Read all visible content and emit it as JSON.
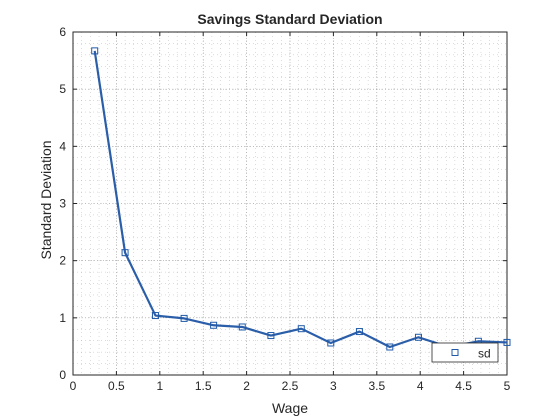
{
  "colors": {
    "background": "#ffffff",
    "axes": "#262626",
    "grid": "#8c8c8c",
    "line": "#2b5ea9",
    "marker_edge": "#1f5aa8"
  },
  "chart_data": {
    "type": "line",
    "title": "Savings Standard Deviation",
    "xlabel": "Wage",
    "ylabel": "Standard Deviation",
    "xlim": [
      0,
      5
    ],
    "ylim": [
      0,
      6
    ],
    "xticks": [
      0,
      0.5,
      1,
      1.5,
      2,
      2.5,
      3,
      3.5,
      4,
      4.5,
      5
    ],
    "xtick_labels": [
      "0",
      "0.5",
      "1",
      "1.5",
      "2",
      "2.5",
      "3",
      "3.5",
      "4",
      "4.5",
      "5"
    ],
    "yticks": [
      0,
      1,
      2,
      3,
      4,
      5,
      6
    ],
    "ytick_labels": [
      "0",
      "1",
      "2",
      "3",
      "4",
      "5",
      "6"
    ],
    "grid": true,
    "minor_grid": true,
    "legend_location": "bottom-right",
    "series": [
      {
        "name": "sd",
        "marker": "square",
        "x": [
          0.25,
          0.6,
          0.95,
          1.28,
          1.62,
          1.95,
          2.28,
          2.63,
          2.97,
          3.3,
          3.65,
          3.98,
          4.33,
          4.67,
          5.0
        ],
        "y": [
          5.67,
          2.14,
          1.04,
          0.99,
          0.87,
          0.84,
          0.69,
          0.81,
          0.56,
          0.76,
          0.49,
          0.66,
          0.49,
          0.59,
          0.57
        ]
      }
    ]
  }
}
